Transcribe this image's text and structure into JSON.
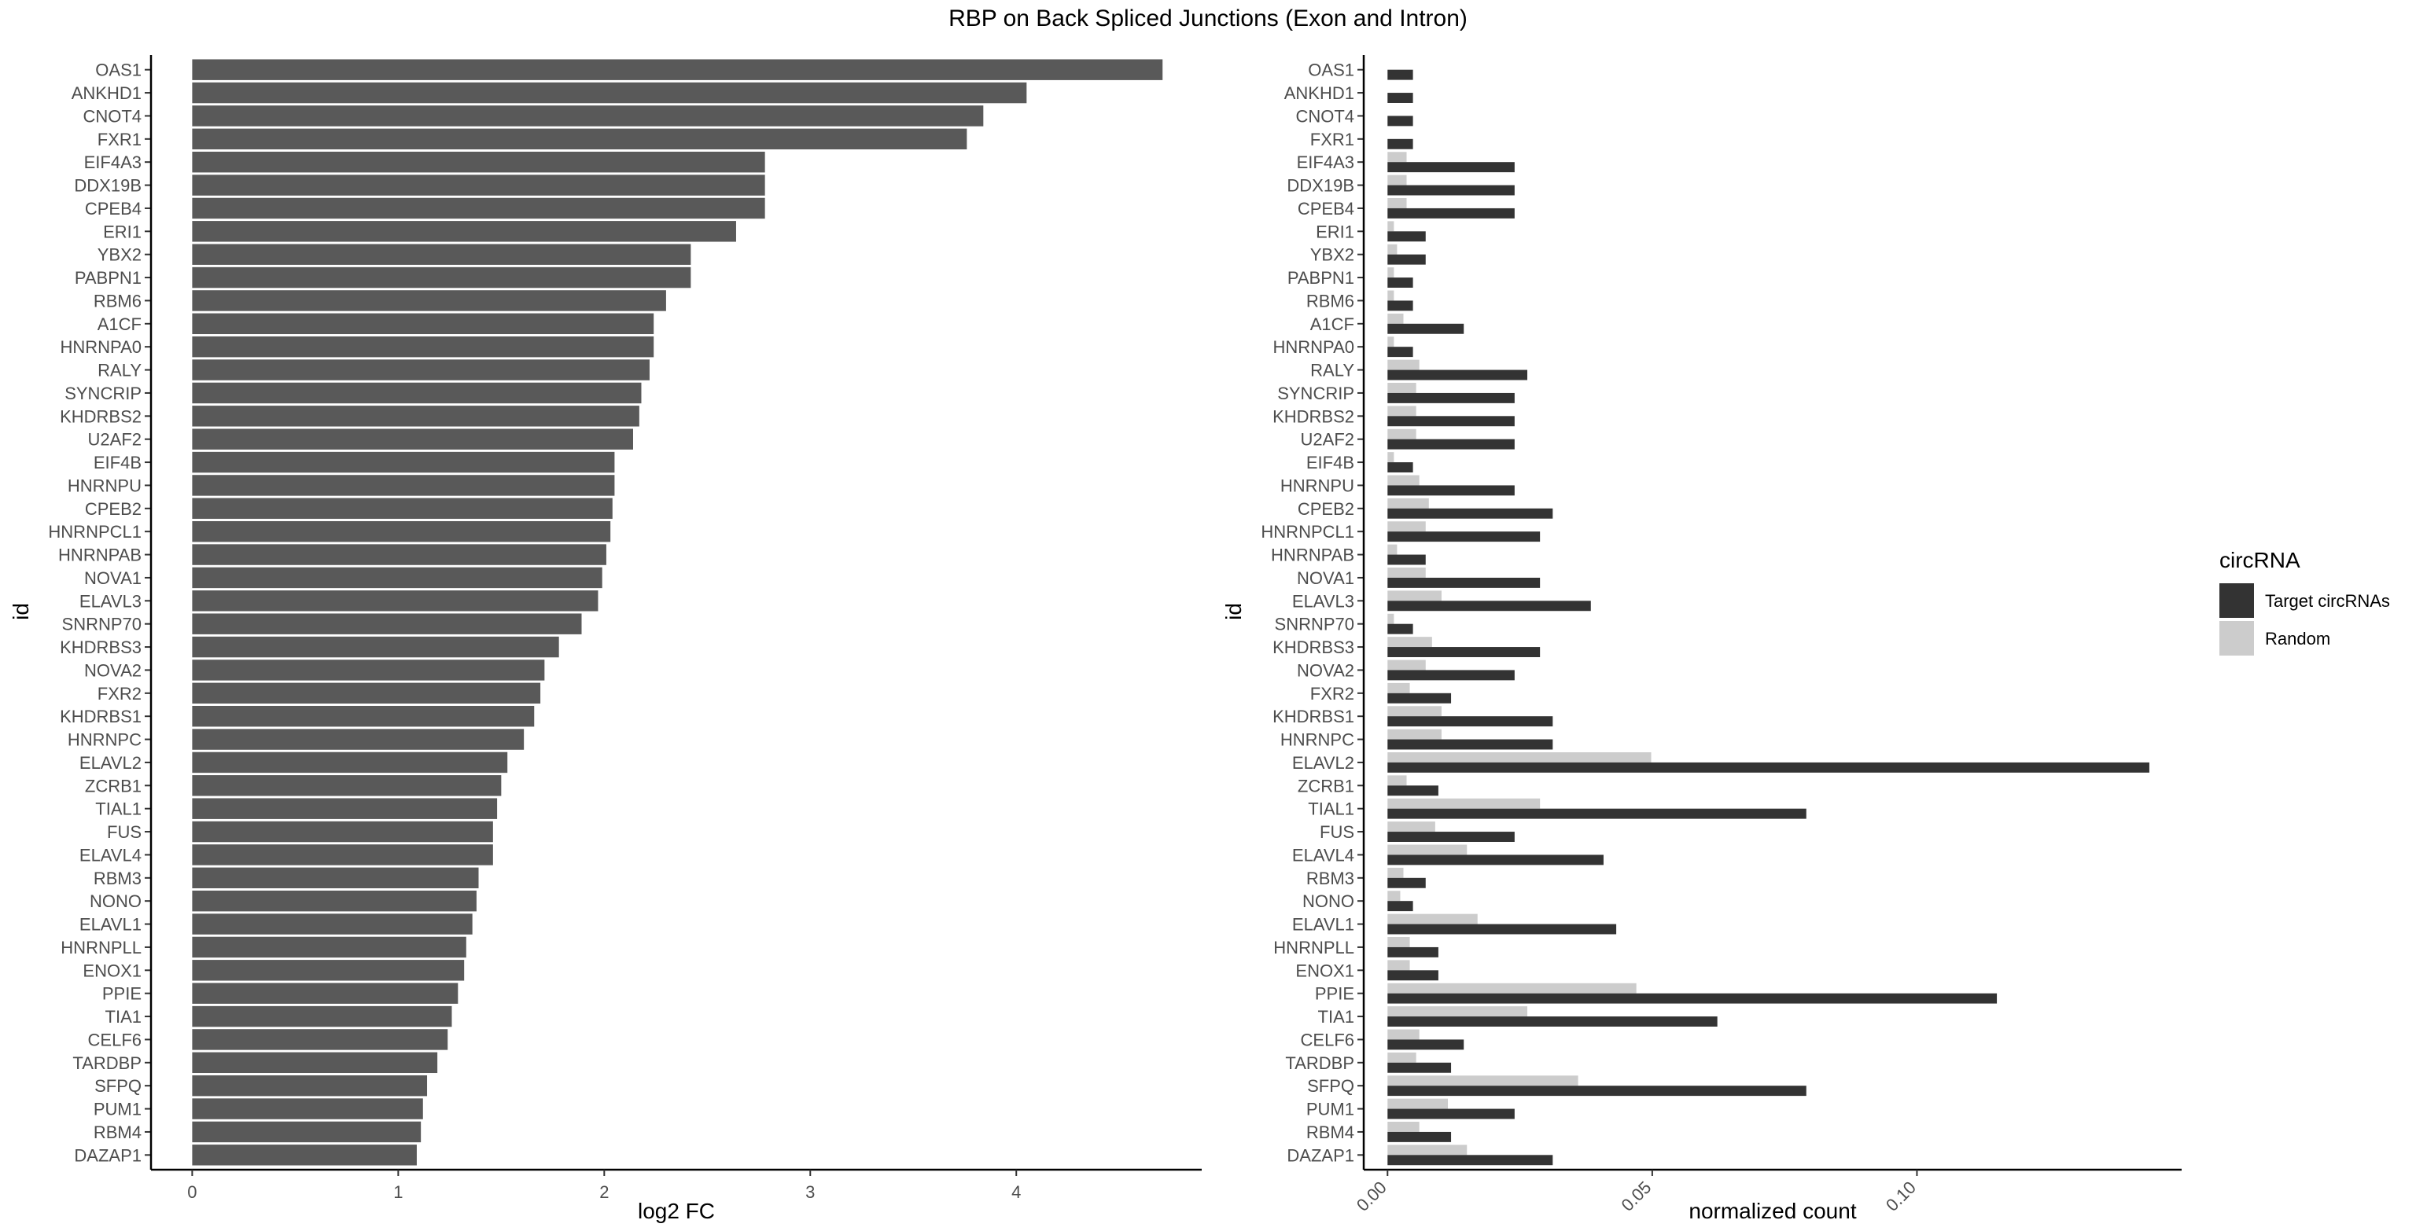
{
  "title": "RBP on Back Spliced Junctions (Exon and Intron)",
  "chart_data": [
    {
      "type": "bar",
      "orientation": "horizontal",
      "xlabel": "log2 FC",
      "ylabel": "id",
      "xlim": [
        -0.2,
        4.9
      ],
      "x_ticks": [
        "0",
        "1",
        "2",
        "3",
        "4"
      ],
      "grid": false,
      "bar_color": "#595959",
      "categories": [
        "OAS1",
        "ANKHD1",
        "CNOT4",
        "FXR1",
        "EIF4A3",
        "DDX19B",
        "CPEB4",
        "ERI1",
        "YBX2",
        "PABPN1",
        "RBM6",
        "A1CF",
        "HNRNPA0",
        "RALY",
        "SYNCRIP",
        "KHDRBS2",
        "U2AF2",
        "EIF4B",
        "HNRNPU",
        "CPEB2",
        "HNRNPCL1",
        "HNRNPAB",
        "NOVA1",
        "ELAVL3",
        "SNRNP70",
        "KHDRBS3",
        "NOVA2",
        "FXR2",
        "KHDRBS1",
        "HNRNPC",
        "ELAVL2",
        "ZCRB1",
        "TIAL1",
        "FUS",
        "ELAVL4",
        "RBM3",
        "NONO",
        "ELAVL1",
        "HNRNPLL",
        "ENOX1",
        "PPIE",
        "TIA1",
        "CELF6",
        "TARDBP",
        "SFPQ",
        "PUM1",
        "RBM4",
        "DAZAP1"
      ],
      "values": [
        4.71,
        4.05,
        3.84,
        3.76,
        2.78,
        2.78,
        2.78,
        2.64,
        2.42,
        2.42,
        2.3,
        2.24,
        2.24,
        2.22,
        2.18,
        2.17,
        2.14,
        2.05,
        2.05,
        2.04,
        2.03,
        2.01,
        1.99,
        1.97,
        1.89,
        1.78,
        1.71,
        1.69,
        1.66,
        1.61,
        1.53,
        1.5,
        1.48,
        1.46,
        1.46,
        1.39,
        1.38,
        1.36,
        1.33,
        1.32,
        1.29,
        1.26,
        1.24,
        1.19,
        1.14,
        1.12,
        1.11,
        1.09
      ]
    },
    {
      "type": "bar",
      "orientation": "horizontal",
      "grouped": true,
      "xlabel": "normalized count",
      "ylabel": "id",
      "xlim": [
        -0.0045,
        0.15
      ],
      "x_ticks": [
        0.0,
        0.05,
        0.1
      ],
      "x_tick_labels": [
        "0.00",
        "0.05",
        "0.10"
      ],
      "grid": false,
      "legend": {
        "title": "circRNA",
        "position": "right"
      },
      "categories": [
        "OAS1",
        "ANKHD1",
        "CNOT4",
        "FXR1",
        "EIF4A3",
        "DDX19B",
        "CPEB4",
        "ERI1",
        "YBX2",
        "PABPN1",
        "RBM6",
        "A1CF",
        "HNRNPA0",
        "RALY",
        "SYNCRIP",
        "KHDRBS2",
        "U2AF2",
        "EIF4B",
        "HNRNPU",
        "CPEB2",
        "HNRNPCL1",
        "HNRNPAB",
        "NOVA1",
        "ELAVL3",
        "SNRNP70",
        "KHDRBS3",
        "NOVA2",
        "FXR2",
        "KHDRBS1",
        "HNRNPC",
        "ELAVL2",
        "ZCRB1",
        "TIAL1",
        "FUS",
        "ELAVL4",
        "RBM3",
        "NONO",
        "ELAVL1",
        "HNRNPLL",
        "ENOX1",
        "PPIE",
        "TIA1",
        "CELF6",
        "TARDBP",
        "SFPQ",
        "PUM1",
        "RBM4",
        "DAZAP1"
      ],
      "series": [
        {
          "name": "Target circRNAs",
          "color": "#333333",
          "values": [
            0.0048,
            0.0048,
            0.0048,
            0.0048,
            0.024,
            0.024,
            0.024,
            0.0072,
            0.0072,
            0.0048,
            0.0048,
            0.0144,
            0.0048,
            0.0264,
            0.024,
            0.024,
            0.024,
            0.0048,
            0.024,
            0.0312,
            0.0288,
            0.0072,
            0.0288,
            0.0384,
            0.0048,
            0.0288,
            0.024,
            0.012,
            0.0312,
            0.0312,
            0.1439,
            0.0096,
            0.0791,
            0.024,
            0.0408,
            0.0072,
            0.0048,
            0.0432,
            0.0096,
            0.0096,
            0.1151,
            0.0623,
            0.0144,
            0.012,
            0.0791,
            0.024,
            0.012,
            0.0312
          ]
        },
        {
          "name": "Random",
          "color": "#cccccc",
          "values": [
            0.0,
            0.0,
            0.0,
            0.0,
            0.0036,
            0.0036,
            0.0036,
            0.0012,
            0.0018,
            0.0012,
            0.0012,
            0.003,
            0.0012,
            0.006,
            0.0054,
            0.0054,
            0.0054,
            0.0012,
            0.006,
            0.0078,
            0.0072,
            0.0018,
            0.0072,
            0.0102,
            0.0012,
            0.0084,
            0.0072,
            0.0042,
            0.0102,
            0.0102,
            0.0498,
            0.0036,
            0.0288,
            0.009,
            0.015,
            0.003,
            0.0024,
            0.017,
            0.0042,
            0.0042,
            0.047,
            0.0264,
            0.006,
            0.0054,
            0.036,
            0.0114,
            0.006,
            0.015
          ]
        }
      ]
    }
  ]
}
